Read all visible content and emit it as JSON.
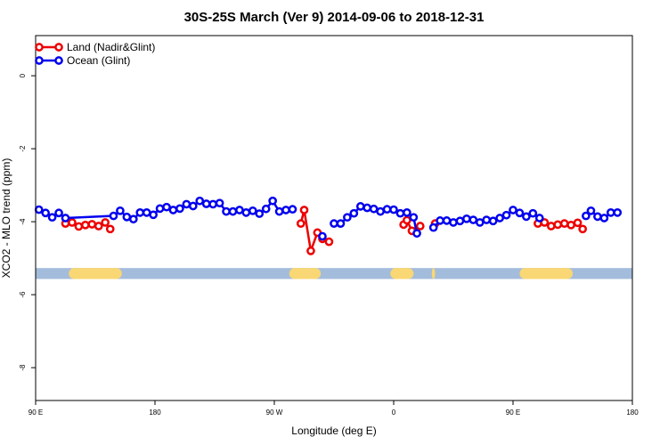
{
  "chart_data": {
    "type": "line",
    "title": "30S-25S March (Ver 9)   2014-09-06 to 2018-12-31",
    "xlabel": "Longitude (deg E)",
    "ylabel": "XCO2 - MLO trend (ppm)",
    "xlim": [
      90,
      450
    ],
    "ylim": [
      -8.9,
      1.1
    ],
    "x_ticks": [
      {
        "value": 90,
        "label": "90 E"
      },
      {
        "value": 162,
        "label": "180"
      },
      {
        "value": 234,
        "label": "90 W"
      },
      {
        "value": 306,
        "label": "0"
      },
      {
        "value": 378,
        "label": "90 E"
      },
      {
        "value": 450,
        "label": "180"
      }
    ],
    "y_ticks": [
      {
        "value": 0,
        "label": "0"
      },
      {
        "value": -2,
        "label": "-2"
      },
      {
        "value": -4,
        "label": "-4"
      },
      {
        "value": -6,
        "label": "-6"
      },
      {
        "value": -8,
        "label": "-8"
      }
    ],
    "legend_position": "top-left",
    "land_mask": {
      "y": -5.42,
      "thickness_ppm": 0.3,
      "ocean_color": "#a4bcdc",
      "land_color": "#f9d774",
      "land_segments": [
        [
          110,
          142
        ],
        [
          243,
          262
        ],
        [
          304,
          318
        ],
        [
          329,
          331
        ],
        [
          382,
          414
        ]
      ]
    },
    "series": [
      {
        "name": "Land (Nadir&Glint)",
        "color": "#ee0000",
        "segments": [
          [
            [
              108,
              -4.05
            ],
            [
              112,
              -4.02
            ],
            [
              116,
              -4.13
            ],
            [
              120,
              -4.09
            ],
            [
              124,
              -4.07
            ],
            [
              128,
              -4.12
            ],
            [
              132,
              -4.02
            ],
            [
              135,
              -4.2
            ]
          ],
          [
            [
              250,
              -4.05
            ],
            [
              252,
              -3.68
            ],
            [
              256,
              -4.8
            ],
            [
              260,
              -4.3
            ],
            [
              263,
              -4.47
            ],
            [
              267,
              -4.55
            ]
          ],
          [
            [
              312,
              -4.08
            ],
            [
              314,
              -3.96
            ],
            [
              317,
              -4.25
            ],
            [
              322,
              -4.12
            ]
          ],
          [
            [
              331,
              -4.05
            ]
          ],
          [
            [
              393,
              -4.05
            ],
            [
              397,
              -4.02
            ],
            [
              401,
              -4.12
            ],
            [
              405,
              -4.08
            ],
            [
              409,
              -4.05
            ],
            [
              413,
              -4.09
            ],
            [
              417,
              -4.03
            ],
            [
              420,
              -4.2
            ]
          ]
        ]
      },
      {
        "name": "Ocean (Glint)",
        "color": "#0000ee",
        "segments": [
          [
            [
              92,
              -3.67
            ],
            [
              96,
              -3.76
            ],
            [
              100,
              -3.88
            ],
            [
              104,
              -3.76
            ],
            [
              108,
              -3.9
            ],
            [
              137,
              -3.84
            ],
            [
              141,
              -3.7
            ],
            [
              145,
              -3.87
            ],
            [
              149,
              -3.93
            ],
            [
              153,
              -3.75
            ],
            [
              157,
              -3.75
            ],
            [
              161,
              -3.81
            ],
            [
              165,
              -3.64
            ],
            [
              169,
              -3.6
            ],
            [
              173,
              -3.68
            ],
            [
              177,
              -3.64
            ],
            [
              181,
              -3.52
            ],
            [
              185,
              -3.57
            ],
            [
              189,
              -3.43
            ],
            [
              193,
              -3.51
            ],
            [
              197,
              -3.52
            ],
            [
              201,
              -3.49
            ],
            [
              205,
              -3.72
            ],
            [
              209,
              -3.72
            ],
            [
              213,
              -3.68
            ],
            [
              217,
              -3.75
            ],
            [
              221,
              -3.7
            ],
            [
              225,
              -3.78
            ],
            [
              229,
              -3.65
            ],
            [
              233,
              -3.43
            ],
            [
              237,
              -3.72
            ],
            [
              241,
              -3.68
            ],
            [
              245,
              -3.66
            ]
          ],
          [
            [
              263,
              -4.4
            ]
          ],
          [
            [
              270,
              -4.05
            ],
            [
              274,
              -4.05
            ],
            [
              278,
              -3.88
            ],
            [
              282,
              -3.77
            ],
            [
              286,
              -3.58
            ],
            [
              290,
              -3.62
            ],
            [
              294,
              -3.65
            ],
            [
              298,
              -3.72
            ],
            [
              302,
              -3.66
            ],
            [
              306,
              -3.67
            ],
            [
              310,
              -3.77
            ],
            [
              314,
              -3.75
            ],
            [
              318,
              -3.88
            ],
            [
              320,
              -4.32
            ]
          ],
          [
            [
              330,
              -4.16
            ],
            [
              334,
              -3.97
            ],
            [
              338,
              -3.97
            ],
            [
              342,
              -4.02
            ],
            [
              346,
              -3.98
            ],
            [
              350,
              -3.92
            ],
            [
              354,
              -3.95
            ],
            [
              358,
              -4.02
            ],
            [
              362,
              -3.95
            ],
            [
              366,
              -3.98
            ],
            [
              370,
              -3.9
            ],
            [
              374,
              -3.82
            ],
            [
              378,
              -3.68
            ],
            [
              382,
              -3.76
            ],
            [
              386,
              -3.86
            ],
            [
              390,
              -3.77
            ],
            [
              394,
              -3.9
            ]
          ],
          [
            [
              422,
              -3.84
            ],
            [
              425,
              -3.7
            ],
            [
              429,
              -3.86
            ],
            [
              433,
              -3.9
            ],
            [
              437,
              -3.75
            ],
            [
              441,
              -3.75
            ]
          ]
        ]
      }
    ]
  }
}
